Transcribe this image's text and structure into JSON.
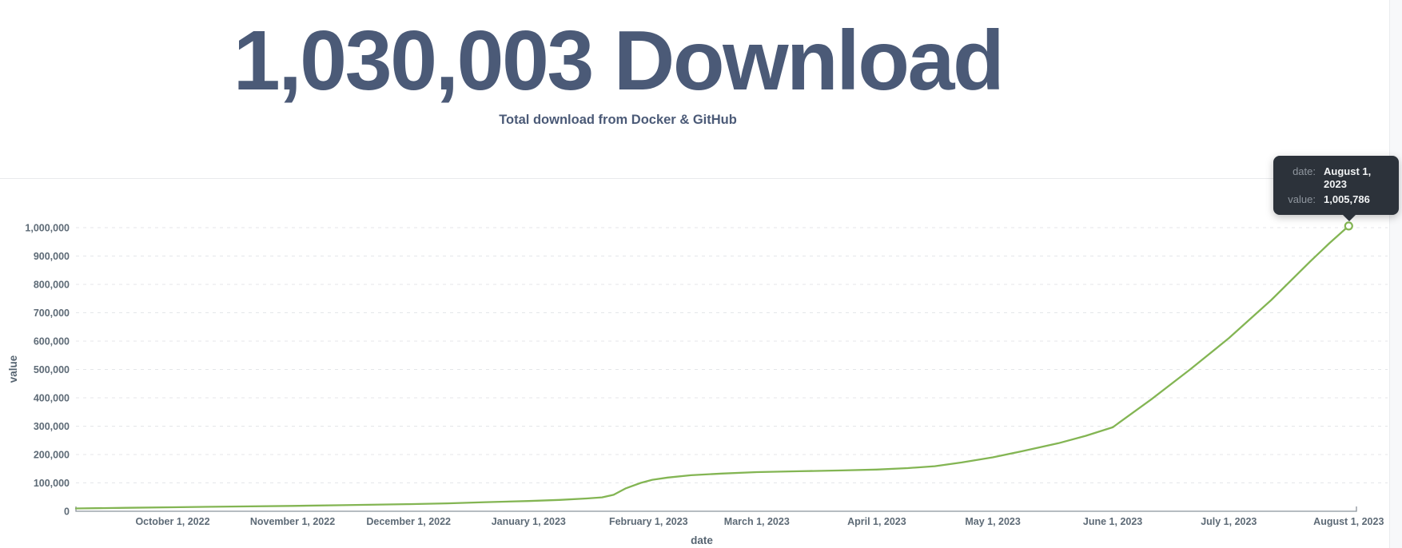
{
  "page": {
    "title": "1,030,003 Download",
    "subtitle": "Total download from Docker & GitHub"
  },
  "tooltip": {
    "date_label": "date:",
    "date_value": "August 1, 2023",
    "value_label": "value:",
    "value_value": "1,005,786"
  },
  "chart_data": {
    "type": "line",
    "title": "1,030,003 Download",
    "subtitle": "Total download from Docker & GitHub",
    "xlabel": "date",
    "ylabel": "value",
    "ylim": [
      0,
      1000000
    ],
    "grid": "horizontal-dashed",
    "legend": "none",
    "line_color": "#83b553",
    "axis_color": "#8b939c",
    "grid_color": "#e4e6e9",
    "tick_label_color": "#5d6a76",
    "axis_title_color": "#566471",
    "x_axis_span_days": 331,
    "x_ticks": [
      {
        "day": 25,
        "label": "October 1, 2022"
      },
      {
        "day": 56,
        "label": "November 1, 2022"
      },
      {
        "day": 86,
        "label": "December 1, 2022"
      },
      {
        "day": 117,
        "label": "January 1, 2023"
      },
      {
        "day": 148,
        "label": "February 1, 2023"
      },
      {
        "day": 176,
        "label": "March 1, 2023"
      },
      {
        "day": 207,
        "label": "April 1, 2023"
      },
      {
        "day": 237,
        "label": "May 1, 2023"
      },
      {
        "day": 268,
        "label": "June 1, 2023"
      },
      {
        "day": 298,
        "label": "July 1, 2023"
      },
      {
        "day": 329,
        "label": "August 1, 2023"
      }
    ],
    "y_ticks": [
      {
        "value": 0,
        "label": "0"
      },
      {
        "value": 100000,
        "label": "100,000"
      },
      {
        "value": 200000,
        "label": "200,000"
      },
      {
        "value": 300000,
        "label": "300,000"
      },
      {
        "value": 400000,
        "label": "400,000"
      },
      {
        "value": 500000,
        "label": "500,000"
      },
      {
        "value": 600000,
        "label": "600,000"
      },
      {
        "value": 700000,
        "label": "700,000"
      },
      {
        "value": 800000,
        "label": "800,000"
      },
      {
        "value": 900000,
        "label": "900,000"
      },
      {
        "value": 1000000,
        "label": "1,000,000"
      }
    ],
    "series": [
      {
        "name": "value",
        "points": [
          [
            0,
            10000
          ],
          [
            13,
            12000
          ],
          [
            25,
            14000
          ],
          [
            40,
            16500
          ],
          [
            56,
            19000
          ],
          [
            69,
            21500
          ],
          [
            86,
            25000
          ],
          [
            96,
            28000
          ],
          [
            106,
            32000
          ],
          [
            117,
            36000
          ],
          [
            125,
            40000
          ],
          [
            132,
            45000
          ],
          [
            136,
            49000
          ],
          [
            139,
            58000
          ],
          [
            142,
            80000
          ],
          [
            146,
            100000
          ],
          [
            149,
            111000
          ],
          [
            153,
            119000
          ],
          [
            159,
            127000
          ],
          [
            167,
            133000
          ],
          [
            176,
            138000
          ],
          [
            187,
            141000
          ],
          [
            198,
            144000
          ],
          [
            207,
            147000
          ],
          [
            215,
            152000
          ],
          [
            222,
            159000
          ],
          [
            229,
            172000
          ],
          [
            237,
            190000
          ],
          [
            245,
            213000
          ],
          [
            254,
            240000
          ],
          [
            261,
            266000
          ],
          [
            268,
            296000
          ],
          [
            278,
            395000
          ],
          [
            288,
            500000
          ],
          [
            298,
            610000
          ],
          [
            309,
            745000
          ],
          [
            319,
            880000
          ],
          [
            324,
            945000
          ],
          [
            329,
            1005786
          ]
        ]
      }
    ],
    "highlighted_point": {
      "day": 329,
      "date": "August 1, 2023",
      "value": 1005786
    }
  }
}
